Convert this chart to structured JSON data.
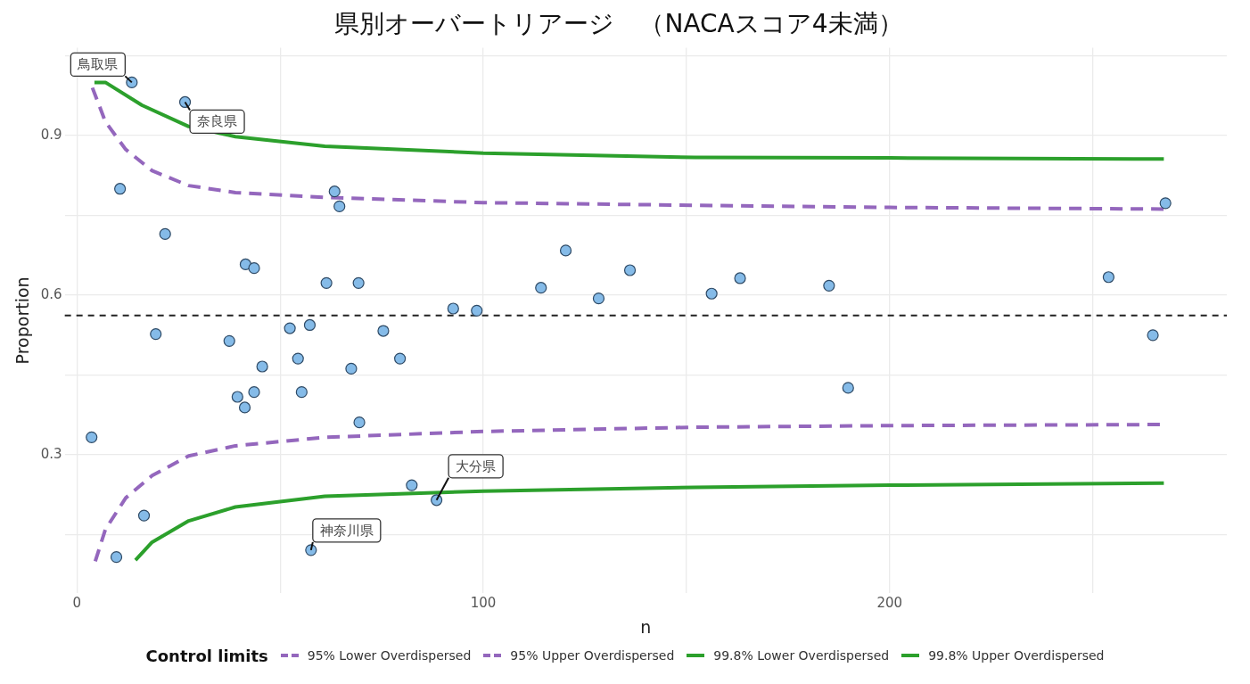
{
  "chart_data": {
    "type": "scatter",
    "title": "県別オーバートリアージ　（NACAスコア4未満）",
    "xlabel": "n",
    "ylabel": "Proportion",
    "legend_title": "Control limits",
    "legend": "bottom",
    "grid": true,
    "xlim": [
      -3,
      283
    ],
    "ylim": [
      0.04,
      1.065
    ],
    "xticks": [
      0,
      {
        "value": 50,
        "label": null
      },
      100,
      {
        "value": 150,
        "label": null
      },
      200,
      {
        "value": 250,
        "label": null
      }
    ],
    "yticks": [
      {
        "value": 0.15,
        "label": null
      },
      0.3,
      {
        "value": 0.45,
        "label": null
      },
      0.6,
      {
        "value": 0.75,
        "label": null
      },
      0.9,
      {
        "value": 1.05,
        "label": null
      }
    ],
    "series": [
      {
        "type": "scatter",
        "color": "#85bbe8",
        "marker": "circle",
        "x": [
          3.6,
          9.7,
          10.6,
          13.5,
          16.5,
          19.4,
          21.7,
          26.6,
          37.5,
          39.5,
          41.3,
          41.5,
          43.6,
          43.6,
          45.6,
          52.4,
          54.4,
          55.3,
          57.3,
          57.6,
          61.4,
          63.4,
          64.6,
          67.5,
          69.3,
          69.5,
          75.4,
          79.5,
          82.4,
          88.5,
          92.6,
          98.4,
          114.2,
          120.3,
          128.4,
          136.1,
          156.2,
          163.2,
          185.1,
          189.8,
          253.9,
          264.8,
          267.9
        ],
        "values": [
          0.333,
          0.108,
          0.8,
          1.0,
          0.186,
          0.527,
          0.715,
          0.963,
          0.514,
          0.409,
          0.389,
          0.658,
          0.651,
          0.418,
          0.466,
          0.538,
          0.481,
          0.418,
          0.544,
          0.121,
          0.623,
          0.795,
          0.767,
          0.462,
          0.623,
          0.361,
          0.533,
          0.481,
          0.243,
          0.215,
          0.575,
          0.571,
          0.614,
          0.684,
          0.594,
          0.647,
          0.603,
          0.632,
          0.618,
          0.426,
          0.634,
          0.525,
          0.773
        ]
      },
      {
        "type": "line",
        "name": "95% Lower Overdispersed",
        "color": "#9467bd",
        "line_style": "dashed",
        "x": [
          4.5,
          7,
          12,
          18.5,
          27.5,
          39,
          61,
          100,
          152,
          200,
          267.5
        ],
        "values": [
          0.1,
          0.16,
          0.219,
          0.261,
          0.298,
          0.317,
          0.333,
          0.344,
          0.352,
          0.355,
          0.357
        ]
      },
      {
        "type": "line",
        "name": "95% Upper Overdispersed",
        "color": "#9467bd",
        "line_style": "dashed",
        "x": [
          3.8,
          7,
          12,
          18.5,
          27.5,
          39,
          61,
          100,
          152,
          200,
          267.5
        ],
        "values": [
          0.99,
          0.926,
          0.874,
          0.834,
          0.806,
          0.793,
          0.784,
          0.774,
          0.769,
          0.765,
          0.762
        ]
      },
      {
        "type": "line",
        "name": "99.8% Lower Overdispersed",
        "color": "#2ca02c",
        "line_style": "solid",
        "x": [
          14.4,
          18.5,
          27.5,
          39,
          61,
          100,
          152,
          200,
          267.5
        ],
        "values": [
          0.102,
          0.136,
          0.176,
          0.202,
          0.222,
          0.232,
          0.239,
          0.243,
          0.247
        ]
      },
      {
        "type": "line",
        "name": "99.8% Upper Overdispersed",
        "color": "#2ca02c",
        "line_style": "solid",
        "x": [
          4.3,
          7,
          16,
          27.5,
          39,
          61,
          100,
          152,
          200,
          267.5
        ],
        "values": [
          1.0,
          1.0,
          0.957,
          0.917,
          0.898,
          0.88,
          0.867,
          0.859,
          0.858,
          0.856
        ]
      }
    ],
    "ref_lines": [
      {
        "axis": "y",
        "value": 0.562,
        "color": "#222222",
        "line_style": "dashed"
      }
    ],
    "annotations": [
      {
        "text": "鳥取県",
        "x": 13.5,
        "y": 1.0
      },
      {
        "text": "奈良県",
        "x": 26.6,
        "y": 0.963
      },
      {
        "text": "大分県",
        "x": 88.5,
        "y": 0.215
      },
      {
        "text": "神奈川県",
        "x": 57.6,
        "y": 0.121
      }
    ]
  }
}
